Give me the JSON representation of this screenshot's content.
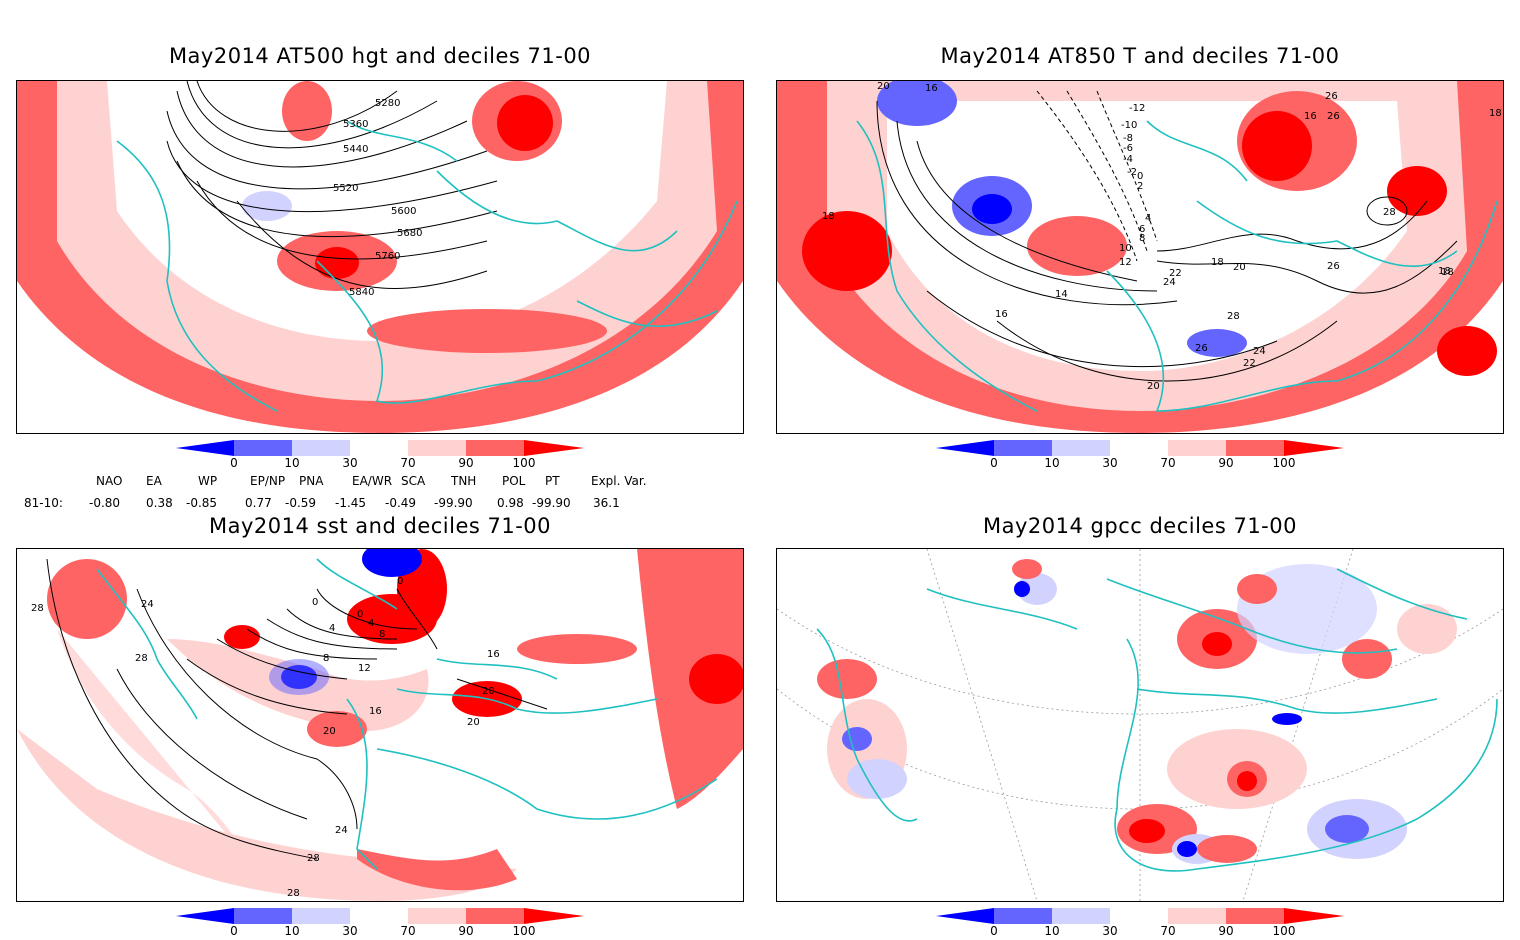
{
  "panels": [
    {
      "title": "May2014 AT500 hgt and deciles 71-00",
      "contour_labels": [
        "5280",
        "5360",
        "5440",
        "5520",
        "5600",
        "5680",
        "5760",
        "5840"
      ]
    },
    {
      "title": "May2014 AT850 T and deciles 71-00",
      "contour_labels": [
        "20",
        "16",
        "-12",
        "-10",
        "-8",
        "-6",
        "-4",
        "-2",
        "0",
        "2",
        "4",
        "6",
        "8",
        "10",
        "12",
        "14",
        "16",
        "18",
        "20",
        "22",
        "24",
        "26",
        "28",
        "18",
        "18",
        "16",
        "26",
        "26",
        "28",
        "26",
        "24",
        "22",
        "20",
        "26",
        "18"
      ]
    },
    {
      "title": "May2014 sst and deciles 71-00",
      "contour_labels": [
        "28",
        "24",
        "28",
        "0",
        "0",
        "0",
        "4",
        "4",
        "8",
        "8",
        "12",
        "16",
        "20",
        "16",
        "20",
        "20",
        "24",
        "28",
        "28"
      ]
    },
    {
      "title": "May2014 gpcc deciles 71-00",
      "contour_labels": []
    }
  ],
  "colorbar": {
    "ticks": [
      "0",
      "10",
      "30",
      "70",
      "90",
      "100"
    ],
    "colors": [
      "#0000ff",
      "#6464ff",
      "#d2d2ff",
      "#ffffff",
      "#ffd2d2",
      "#ff6464",
      "#ff0000"
    ]
  },
  "teleconnections": {
    "period_label": "81-10:",
    "columns": [
      {
        "name": "NAO",
        "value": "-0.80"
      },
      {
        "name": "EA",
        "value": "0.38"
      },
      {
        "name": "WP",
        "value": "-0.85"
      },
      {
        "name": "EP/NP",
        "value": "0.77"
      },
      {
        "name": "PNA",
        "value": "-0.59"
      },
      {
        "name": "EA/WR",
        "value": "-1.45"
      },
      {
        "name": "SCA",
        "value": "-0.49"
      },
      {
        "name": "TNH",
        "value": "-99.90"
      },
      {
        "name": "POL",
        "value": "0.98"
      },
      {
        "name": "PT",
        "value": "-99.90"
      },
      {
        "name": "Expl. Var.",
        "value": "36.1"
      }
    ]
  }
}
